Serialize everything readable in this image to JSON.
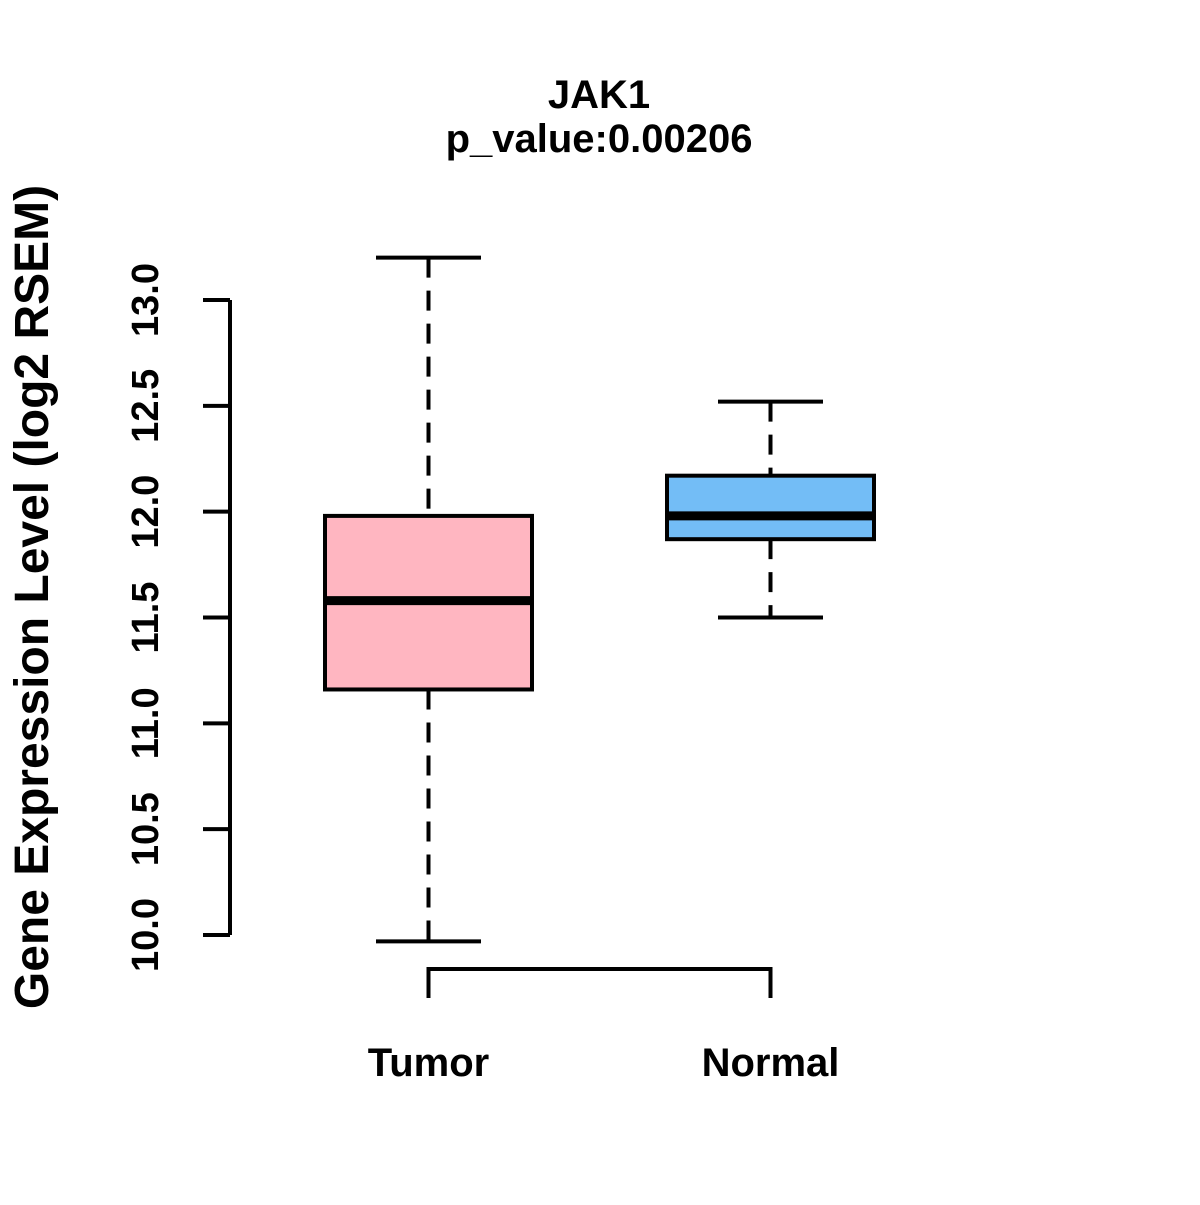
{
  "figure": {
    "title": "JAK1",
    "subtitle": "p_value:0.00206",
    "background": "#FFFFFF"
  },
  "y_axis": {
    "label": "Gene Expression Level (log2 RSEM)",
    "tick_labels": [
      "10.0",
      "10.5",
      "11.0",
      "11.5",
      "12.0",
      "12.5",
      "13.0"
    ],
    "range": [
      10.0,
      13.0
    ]
  },
  "x_axis": {
    "categories": [
      "Tumor",
      "Normal"
    ]
  },
  "colors": {
    "tumor_box": "#FFB6C1",
    "normal_box": "#73BDF6",
    "line": "#000000",
    "text": "#000000"
  },
  "chart_data": {
    "type": "boxplot",
    "title": "JAK1",
    "subtitle": "p_value:0.00206",
    "gene": "JAK1",
    "p_value": 0.00206,
    "xlabel": "",
    "ylabel": "Gene Expression Level (log2 RSEM)",
    "ylim": [
      10.0,
      13.0
    ],
    "y_ticks": [
      10.0,
      10.5,
      11.0,
      11.5,
      12.0,
      12.5,
      13.0
    ],
    "categories": [
      "Tumor",
      "Normal"
    ],
    "series": [
      {
        "name": "Tumor",
        "fill_color": "#FFB6C1",
        "whisker_low": 9.97,
        "q1": 11.16,
        "median": 11.58,
        "q3": 11.98,
        "whisker_high": 13.2,
        "outliers": []
      },
      {
        "name": "Normal",
        "fill_color": "#73BDF6",
        "whisker_low": 11.5,
        "q1": 11.87,
        "median": 11.98,
        "q3": 12.17,
        "whisker_high": 12.52,
        "outliers": []
      }
    ],
    "grid": false,
    "legend": "none",
    "whisker_line_style": "dashed"
  }
}
